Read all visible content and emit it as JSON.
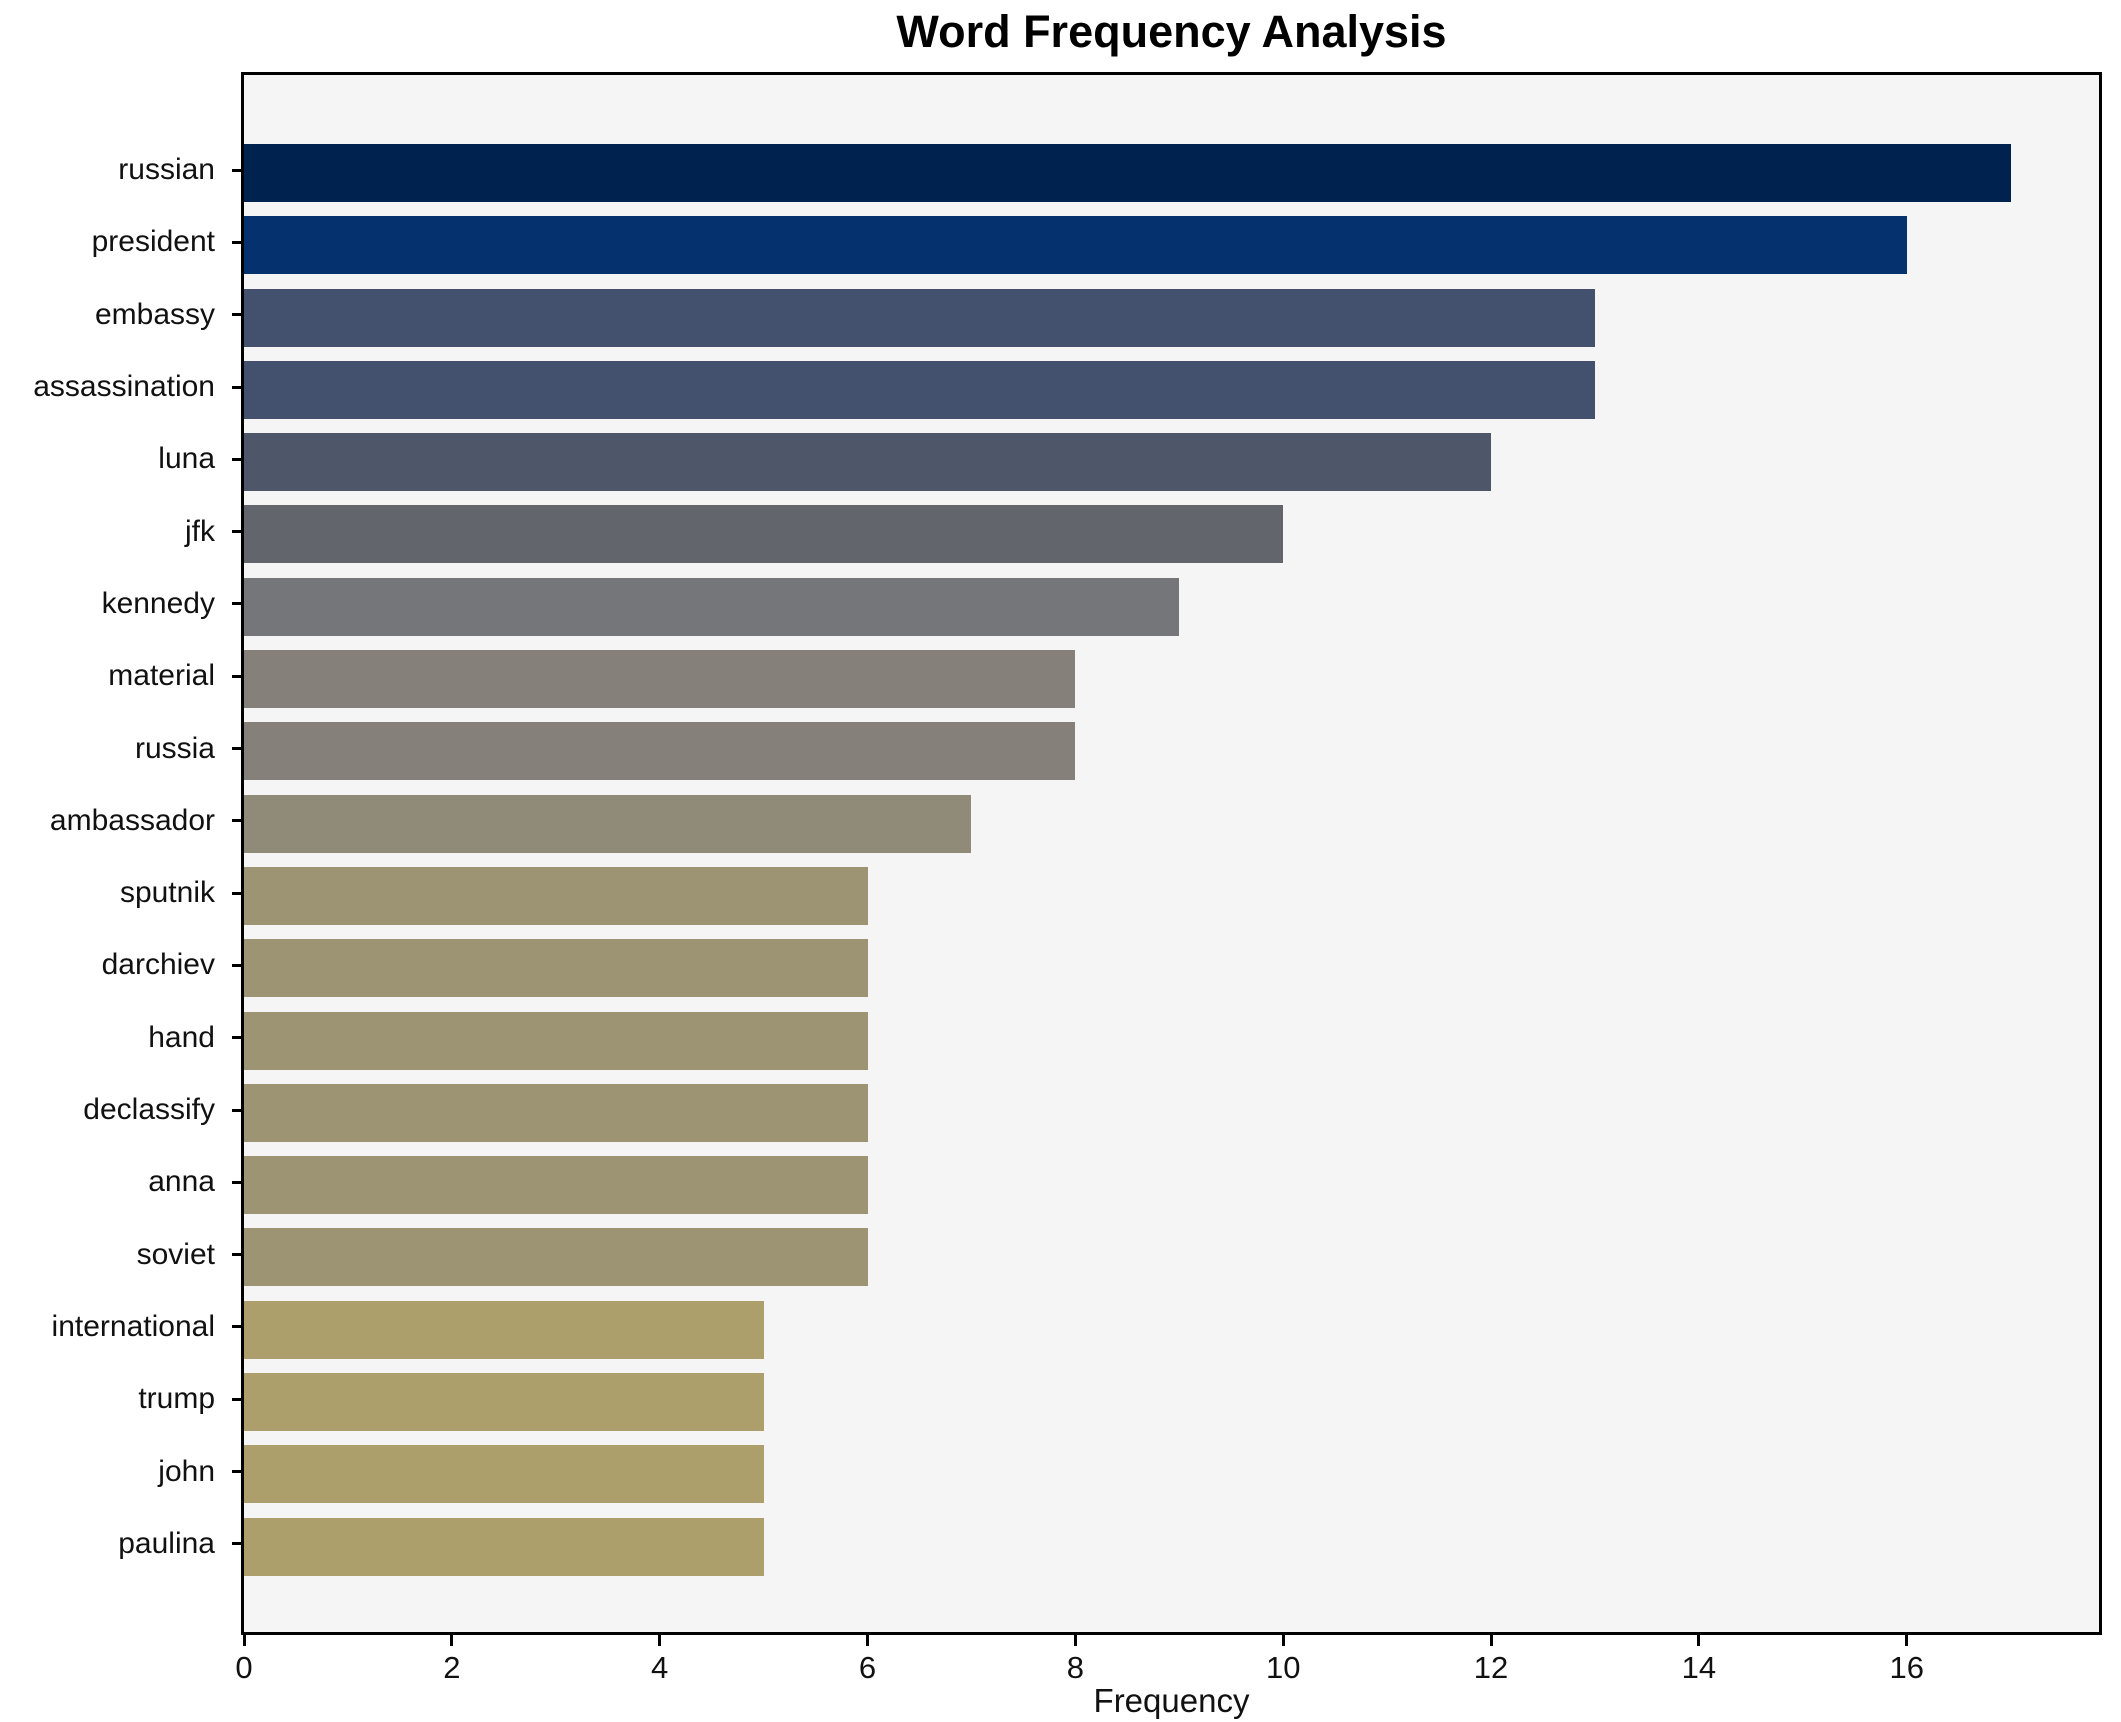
{
  "chart_data": {
    "type": "bar",
    "orientation": "horizontal",
    "title": "Word Frequency Analysis",
    "xlabel": "Frequency",
    "ylabel": "",
    "categories": [
      "russian",
      "president",
      "embassy",
      "assassination",
      "luna",
      "jfk",
      "kennedy",
      "material",
      "russia",
      "ambassador",
      "sputnik",
      "darchiev",
      "hand",
      "declassify",
      "anna",
      "soviet",
      "international",
      "trump",
      "john",
      "paulina"
    ],
    "values": [
      17,
      16,
      13,
      13,
      12,
      10,
      9,
      8,
      8,
      7,
      6,
      6,
      6,
      6,
      6,
      6,
      5,
      5,
      5,
      5
    ],
    "bar_colors": [
      "#00224e",
      "#05316e",
      "#43516f",
      "#43516f",
      "#4e5769",
      "#63656c",
      "#757679",
      "#85817a",
      "#85817a",
      "#908b79",
      "#9c9472",
      "#9c9472",
      "#9c9472",
      "#9c9472",
      "#9c9472",
      "#9c9472",
      "#ac9f6b",
      "#ac9f6b",
      "#ac9f6b",
      "#ac9f6b"
    ],
    "xlim": [
      0,
      17.85
    ],
    "xticks": [
      0,
      2,
      4,
      6,
      8,
      10,
      12,
      14,
      16
    ],
    "grid": false,
    "legend": null,
    "plot_background": "#f5f5f6",
    "figure_background": "#ffffff"
  }
}
